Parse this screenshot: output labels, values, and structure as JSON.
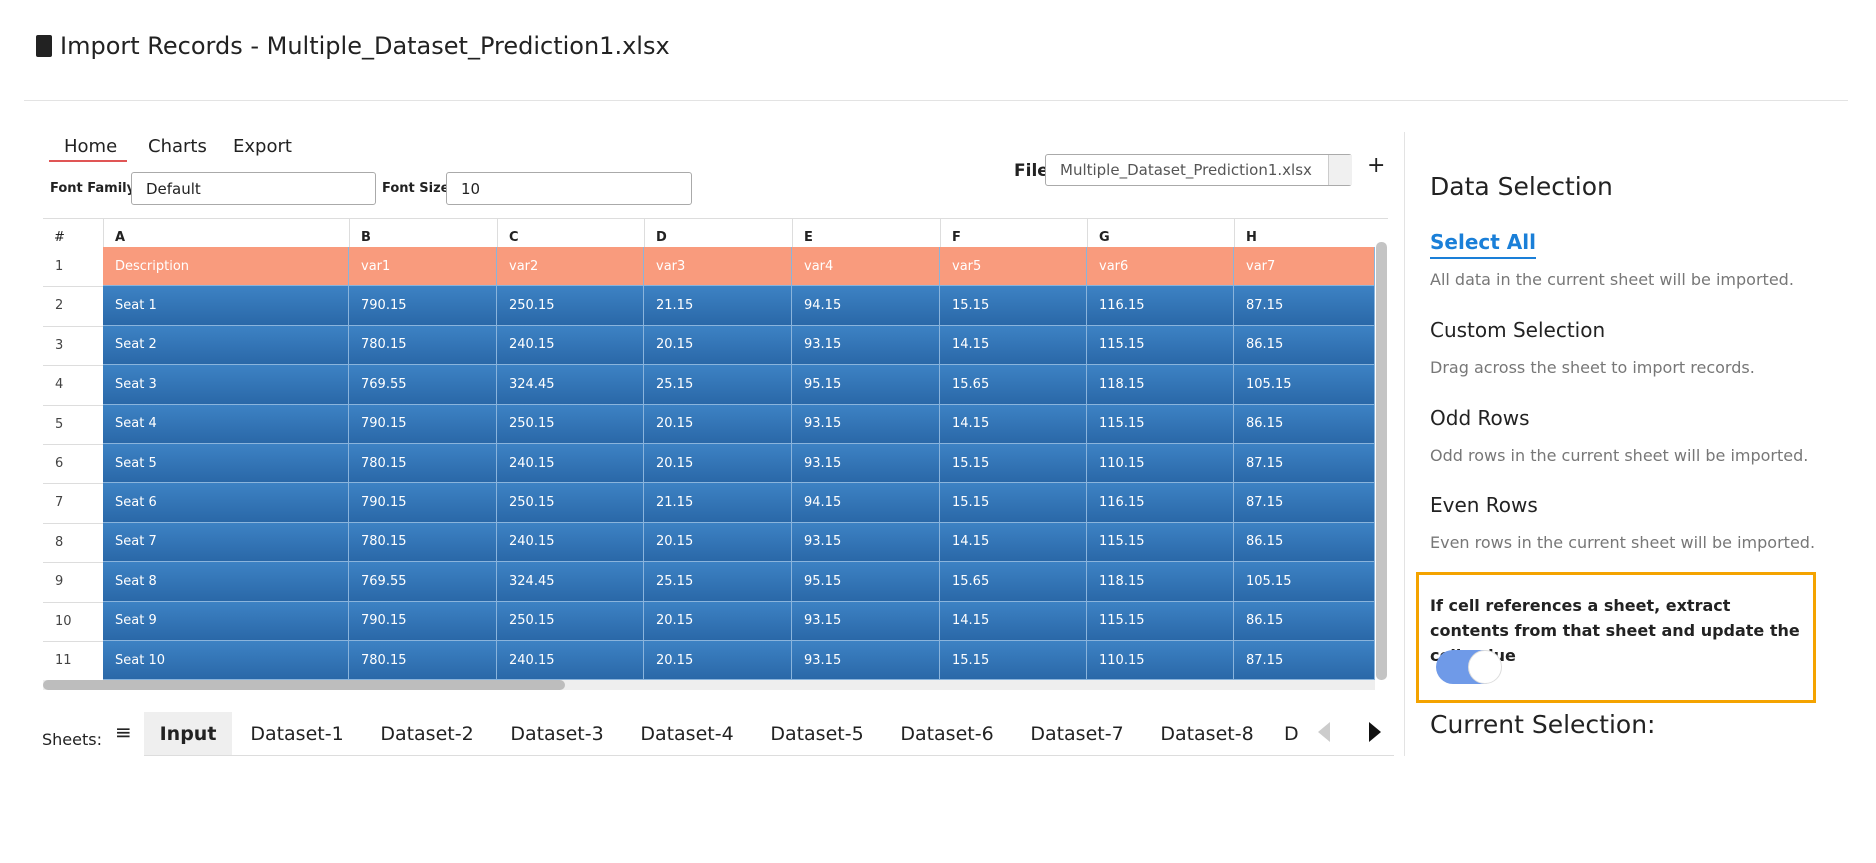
{
  "header": {
    "title": "Import Records - Multiple_Dataset_Prediction1.xlsx"
  },
  "tabs": [
    "Home",
    "Charts",
    "Export"
  ],
  "toolbar": {
    "font_family_label": "Font Family:",
    "font_family": "Default",
    "font_size_label": "Font Size:",
    "font_size": "10",
    "file_label": "File:",
    "file": "Multiple_Dataset_Prediction1.xlsx",
    "add": "+"
  },
  "grid": {
    "corner": "#",
    "columns": [
      "A",
      "B",
      "C",
      "D",
      "E",
      "F",
      "G",
      "H"
    ],
    "row_numbers": [
      "1",
      "2",
      "3",
      "4",
      "5",
      "6",
      "7",
      "8",
      "9",
      "10",
      "11"
    ],
    "rows": [
      [
        "Description",
        "var1",
        "var2",
        "var3",
        "var4",
        "var5",
        "var6",
        "var7"
      ],
      [
        "Seat 1",
        "790.15",
        "250.15",
        "21.15",
        "94.15",
        "15.15",
        "116.15",
        "87.15"
      ],
      [
        "Seat 2",
        "780.15",
        "240.15",
        "20.15",
        "93.15",
        "14.15",
        "115.15",
        "86.15"
      ],
      [
        "Seat 3",
        "769.55",
        "324.45",
        "25.15",
        "95.15",
        "15.65",
        "118.15",
        "105.15"
      ],
      [
        "Seat 4",
        "790.15",
        "250.15",
        "20.15",
        "93.15",
        "14.15",
        "115.15",
        "86.15"
      ],
      [
        "Seat 5",
        "780.15",
        "240.15",
        "20.15",
        "93.15",
        "15.15",
        "110.15",
        "87.15"
      ],
      [
        "Seat 6",
        "790.15",
        "250.15",
        "21.15",
        "94.15",
        "15.15",
        "116.15",
        "87.15"
      ],
      [
        "Seat 7",
        "780.15",
        "240.15",
        "20.15",
        "93.15",
        "14.15",
        "115.15",
        "86.15"
      ],
      [
        "Seat 8",
        "769.55",
        "324.45",
        "25.15",
        "95.15",
        "15.65",
        "118.15",
        "105.15"
      ],
      [
        "Seat 9",
        "790.15",
        "250.15",
        "20.15",
        "93.15",
        "14.15",
        "115.15",
        "86.15"
      ],
      [
        "Seat 10",
        "780.15",
        "240.15",
        "20.15",
        "93.15",
        "15.15",
        "110.15",
        "87.15"
      ]
    ]
  },
  "sheets": {
    "label": "Sheets:",
    "menu": "≡",
    "tabs": [
      "Input",
      "Dataset-1",
      "Dataset-2",
      "Dataset-3",
      "Dataset-4",
      "Dataset-5",
      "Dataset-6",
      "Dataset-7",
      "Dataset-8",
      "D"
    ]
  },
  "panel": {
    "title": "Data Selection",
    "options": [
      {
        "title": "Select All",
        "desc": "All data in the current sheet will be imported."
      },
      {
        "title": "Custom Selection",
        "desc": "Drag across the sheet to import records."
      },
      {
        "title": "Odd Rows",
        "desc": "Odd rows in the current sheet will be imported."
      },
      {
        "title": "Even Rows",
        "desc": "Even rows in the current sheet will be imported."
      }
    ],
    "toggle_text": "If cell references a sheet, extract contents from that sheet and update the cell value",
    "current_selection": "Current Selection:"
  }
}
